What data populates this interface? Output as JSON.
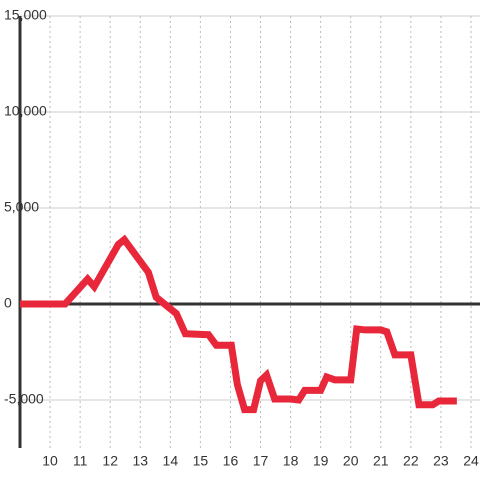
{
  "chart_data": {
    "type": "line",
    "x": [
      9,
      10.5,
      11.25,
      11.47,
      12.27,
      12.47,
      13.27,
      13.53,
      14.2,
      14.5,
      15.27,
      15.53,
      16.03,
      16.23,
      16.47,
      16.77,
      17.0,
      17.2,
      17.47,
      18.0,
      18.27,
      18.47,
      19.0,
      19.2,
      19.47,
      20.0,
      20.2,
      20.47,
      21.0,
      21.2,
      21.47,
      22.0,
      22.27,
      22.73,
      22.93,
      23.53
    ],
    "series": [
      {
        "color": "#e8273b",
        "values": [
          0,
          0,
          1300,
          900,
          3100,
          3350,
          1650,
          350,
          -500,
          -1550,
          -1600,
          -2150,
          -2150,
          -4200,
          -5500,
          -5500,
          -4000,
          -3700,
          -4950,
          -4950,
          -5000,
          -4500,
          -4500,
          -3800,
          -3950,
          -3950,
          -1300,
          -1350,
          -1350,
          -1450,
          -2650,
          -2650,
          -5250,
          -5250,
          -5050,
          -5050
        ]
      }
    ],
    "xlim": [
      9,
      24.3
    ],
    "xticks": [
      10,
      11,
      12,
      13,
      14,
      15,
      16,
      17,
      18,
      19,
      20,
      21,
      22,
      23,
      24
    ],
    "ylim": [
      -7500,
      15000
    ],
    "yticks": [
      {
        "value": -5000,
        "label": "-5,000"
      },
      0,
      {
        "value": 5000,
        "label": "5,000"
      },
      {
        "value": 10000,
        "label": "10,000"
      },
      {
        "value": 15000,
        "label": "15,000"
      }
    ],
    "grid": true
  }
}
